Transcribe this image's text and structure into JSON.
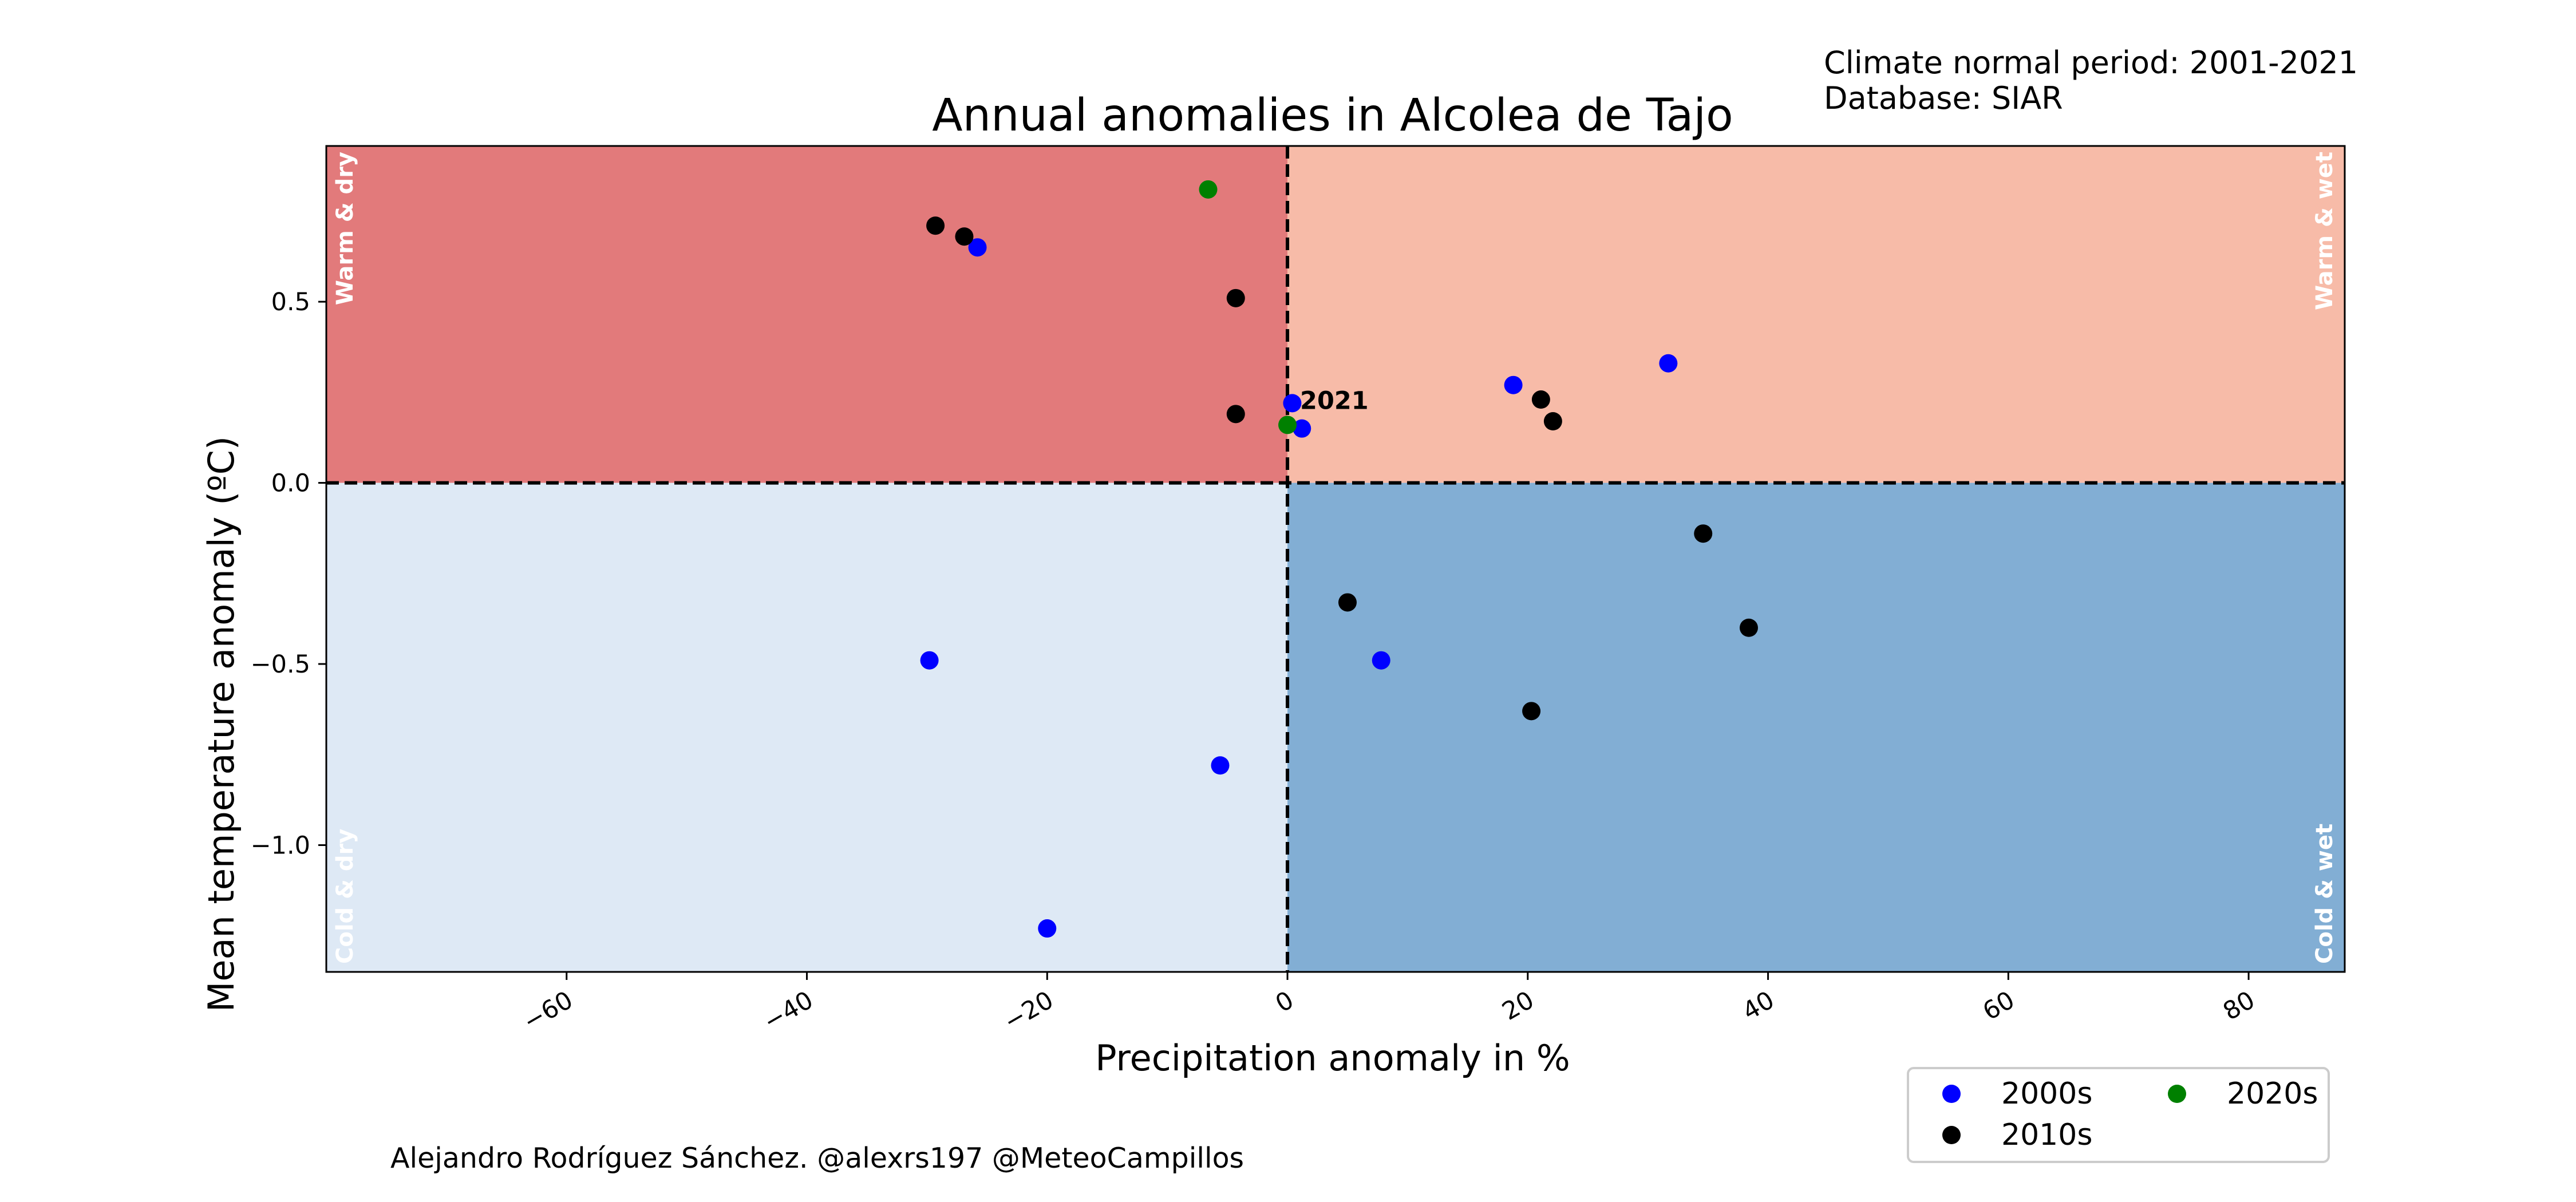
{
  "chart_data": {
    "type": "scatter",
    "title": "Annual anomalies in Alcolea de Tajo",
    "xlabel": "Precipitation anomaly in %",
    "ylabel": "Mean temperature anomaly (ºC)",
    "xlim": [
      -80,
      88
    ],
    "ylim": [
      -1.35,
      0.93
    ],
    "x_ticks": [
      -60,
      -40,
      -20,
      0,
      20,
      40,
      60,
      80
    ],
    "x_tick_labels": [
      "−60",
      "−40",
      "−20",
      "0",
      "20",
      "40",
      "60",
      "80"
    ],
    "y_ticks": [
      0.5,
      0.0,
      -0.5,
      -1.0
    ],
    "y_tick_labels": [
      "0.5",
      "0.0",
      "−0.5",
      "−1.0"
    ],
    "quadrants": [
      {
        "key": "warm_dry",
        "label": "Warm & dry",
        "color": "#e27a7b"
      },
      {
        "key": "warm_wet",
        "label": "Warm & wet",
        "color": "#f7bba8"
      },
      {
        "key": "cold_dry",
        "label": "Cold & dry",
        "color": "#dee9f5"
      },
      {
        "key": "cold_wet",
        "label": "Cold & wet",
        "color": "#82aed4"
      }
    ],
    "series": [
      {
        "name": "2000s",
        "color": "#0000ff",
        "points": [
          {
            "x": -25.8,
            "y": 0.65
          },
          {
            "x": 0.4,
            "y": 0.22
          },
          {
            "x": 1.2,
            "y": 0.15
          },
          {
            "x": 18.8,
            "y": 0.27
          },
          {
            "x": 31.7,
            "y": 0.33
          },
          {
            "x": -29.8,
            "y": -0.49
          },
          {
            "x": -5.6,
            "y": -0.78
          },
          {
            "x": -20.0,
            "y": -1.23
          },
          {
            "x": 7.8,
            "y": -0.49
          }
        ]
      },
      {
        "name": "2010s",
        "color": "#000000",
        "points": [
          {
            "x": -29.3,
            "y": 0.71
          },
          {
            "x": -26.9,
            "y": 0.68
          },
          {
            "x": -4.3,
            "y": 0.51
          },
          {
            "x": -4.3,
            "y": 0.19
          },
          {
            "x": 21.1,
            "y": 0.23
          },
          {
            "x": 22.1,
            "y": 0.17
          },
          {
            "x": 34.6,
            "y": -0.14
          },
          {
            "x": 5.0,
            "y": -0.33
          },
          {
            "x": 38.4,
            "y": -0.4
          },
          {
            "x": 20.3,
            "y": -0.63
          }
        ]
      },
      {
        "name": "2020s",
        "color": "#008000",
        "points": [
          {
            "x": -6.6,
            "y": 0.81
          },
          {
            "x": 0.0,
            "y": 0.16
          }
        ]
      }
    ],
    "annotations": [
      {
        "text": "2021",
        "x": 0.0,
        "y": 0.16
      }
    ],
    "reference_lines": {
      "x": 0,
      "y": 0,
      "style": "dashed"
    },
    "legend_placement": "below-right",
    "grid": false
  },
  "meta": {
    "line1": "Climate normal period: 2001-2021",
    "line2": "Database: SIAR"
  },
  "credit": "Alejandro Rodríguez Sánchez. @alexrs197 @MeteoCampillos"
}
